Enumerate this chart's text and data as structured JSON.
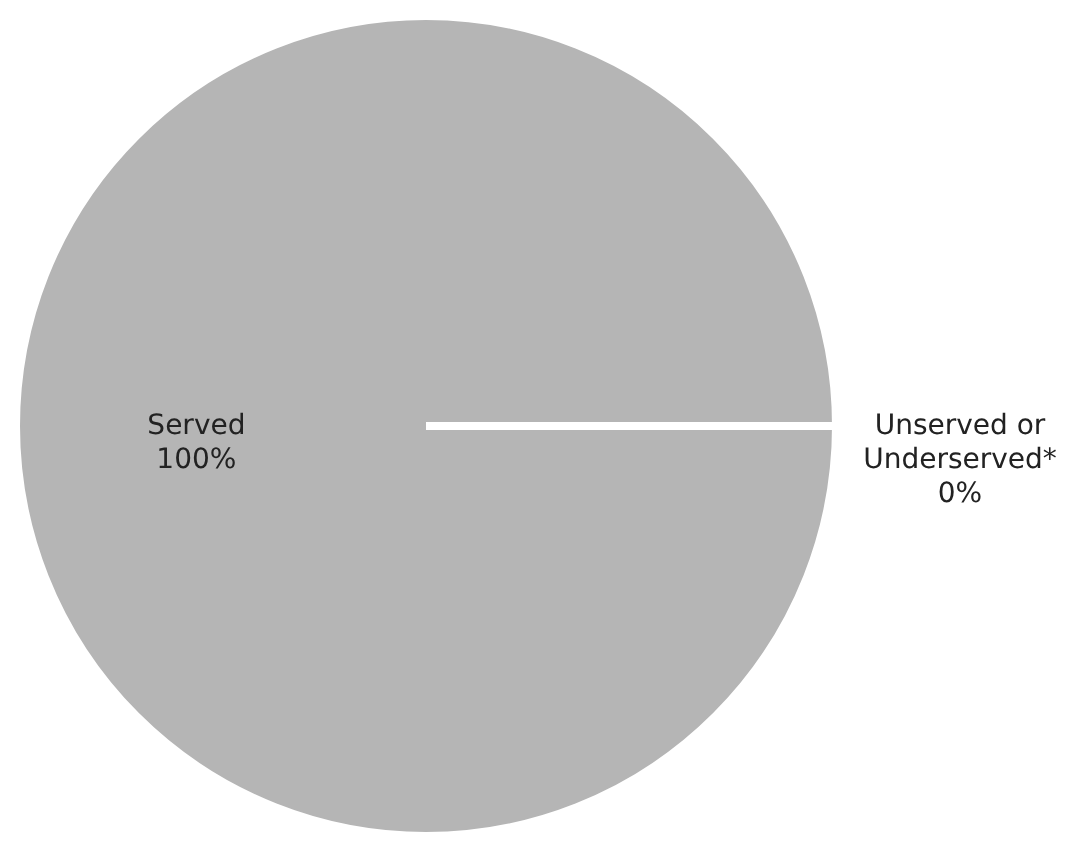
{
  "chart_data": {
    "type": "pie",
    "categories": [
      "Served",
      "Unserved or Underserved*"
    ],
    "values": [
      100,
      0
    ],
    "value_labels": [
      "100%",
      "0%"
    ],
    "colors": [
      "#b5b5b5",
      "#ffffff"
    ]
  }
}
